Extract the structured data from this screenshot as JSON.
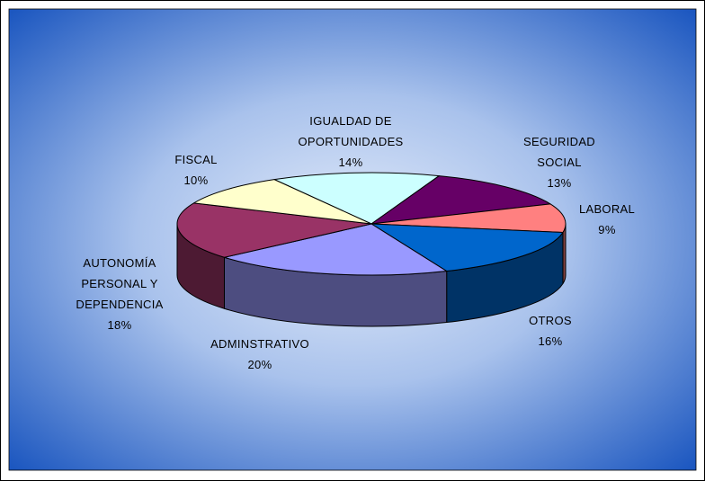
{
  "chart_data": {
    "type": "pie3d",
    "categories": [
      "IGUALDAD DE OPORTUNIDADES",
      "SEGURIDAD SOCIAL",
      "LABORAL",
      "OTROS",
      "ADMINSTRATIVO",
      "AUTONOMÍA PERSONAL Y DEPENDENCIA",
      "FISCAL"
    ],
    "values": [
      14,
      13,
      9,
      16,
      20,
      18,
      10
    ],
    "value_labels": [
      "14%",
      "13%",
      "9%",
      "16%",
      "20%",
      "18%",
      "10%"
    ],
    "colors": [
      "#ccffff",
      "#660066",
      "#ff8080",
      "#0066cc",
      "#9999ff",
      "#993366",
      "#ffffcc"
    ]
  }
}
